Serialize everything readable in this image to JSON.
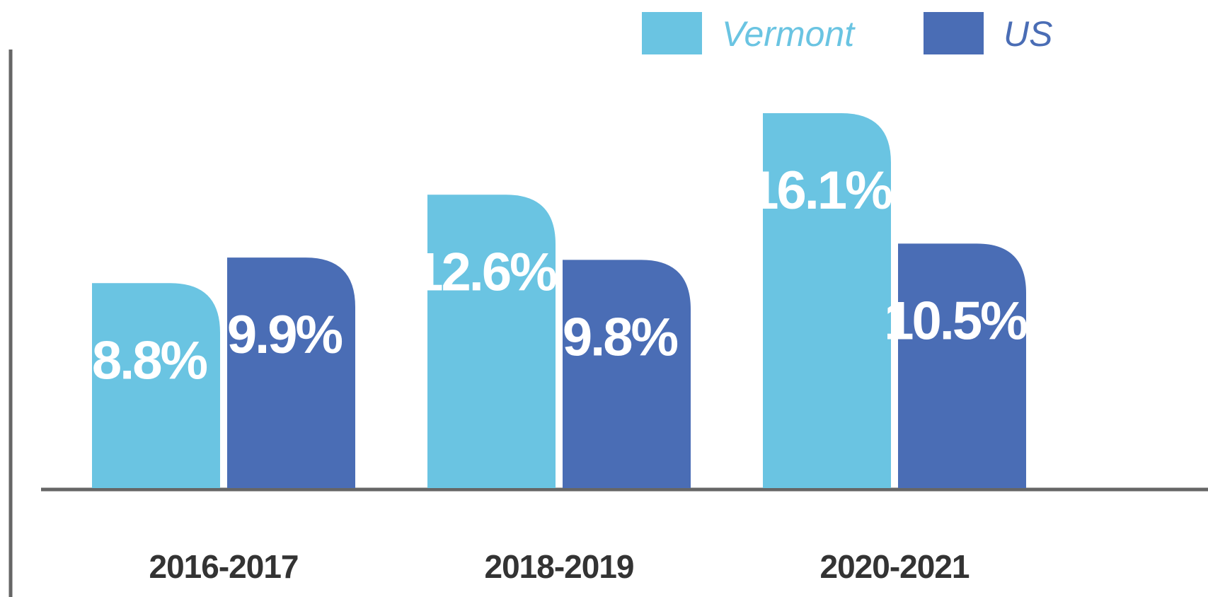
{
  "chart_data": {
    "type": "bar",
    "categories": [
      "2016-2017",
      "2018-2019",
      "2020-2021"
    ],
    "series": [
      {
        "name": "Vermont",
        "color": "#6ac4e2",
        "values": [
          8.8,
          12.6,
          16.1
        ],
        "value_labels": [
          "8.8%",
          "12.6%",
          "16.1%"
        ]
      },
      {
        "name": "US",
        "color": "#4a6db5",
        "values": [
          9.9,
          9.8,
          10.5
        ],
        "value_labels": [
          "9.9%",
          "9.8%",
          "10.5%"
        ]
      }
    ]
  }
}
